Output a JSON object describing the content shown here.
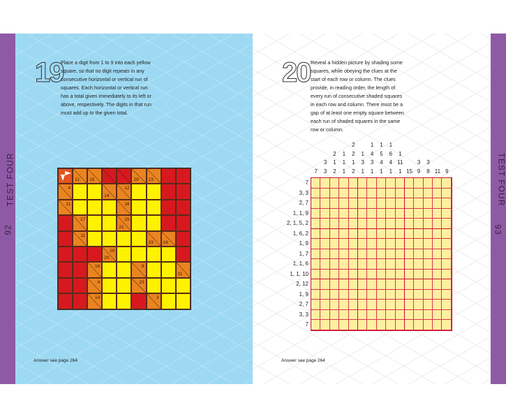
{
  "left_page": {
    "puzzle_number": "19",
    "instructions": "Place a digit from 1 to 9 into each yellow square, so that no digit repeats in any consecutive horizontal or vertical run of squares. Each horizontal or vertical run has a total given immediately to its left or above, respectively. The digits in that run must add up to the given total.",
    "answer_note": "Answer see page 264",
    "side_label": "TEST FOUR",
    "page_number": "92",
    "background_color": "#9dd9f3"
  },
  "right_page": {
    "puzzle_number": "20",
    "instructions": "Reveal a hidden picture by shading some squares, while obeying the clues at the start of each row or column. The clues provide, in reading order, the length of every run of consecutive shaded squares in each row and column. There must be a gap of at least one empty square between each run of shaded squares in the same row or column.",
    "answer_note": "Answer see page 264",
    "side_label": "TEST FOUR",
    "page_number": "93"
  },
  "colors": {
    "side_strip": "#8f5aa5",
    "block": "#d7191f",
    "clue": "#ea8420",
    "entry": "#fff200",
    "nonogram_cell": "#fdf0a0",
    "nonogram_line": "#c8102e"
  },
  "kakuro": {
    "legend": "R=block, Y=entry, C=clue cell, D=block with diagonal, S=start cell with arrows",
    "rows": [
      [
        {
          "t": "S"
        },
        {
          "t": "C",
          "d": "11"
        },
        {
          "t": "C",
          "d": "15"
        },
        {
          "t": "D"
        },
        {
          "t": "D"
        },
        {
          "t": "C",
          "d": "29"
        },
        {
          "t": "C",
          "d": "23"
        },
        {
          "t": "R"
        },
        {
          "t": "R"
        }
      ],
      [
        {
          "t": "C",
          "r": "4"
        },
        {
          "t": "Y"
        },
        {
          "t": "Y"
        },
        {
          "t": "C",
          "d": "14"
        },
        {
          "t": "C",
          "r": "12"
        },
        {
          "t": "Y"
        },
        {
          "t": "Y"
        },
        {
          "t": "R"
        },
        {
          "t": "R"
        }
      ],
      [
        {
          "t": "C",
          "r": "11"
        },
        {
          "t": "Y"
        },
        {
          "t": "Y"
        },
        {
          "t": "Y"
        },
        {
          "t": "C",
          "r": "16"
        },
        {
          "t": "Y"
        },
        {
          "t": "Y"
        },
        {
          "t": "R"
        },
        {
          "t": "R"
        }
      ],
      [
        {
          "t": "R"
        },
        {
          "t": "C",
          "r": "17"
        },
        {
          "t": "Y"
        },
        {
          "t": "Y"
        },
        {
          "t": "C",
          "r": "15",
          "d": "21"
        },
        {
          "t": "Y"
        },
        {
          "t": "Y"
        },
        {
          "t": "R"
        },
        {
          "t": "R"
        }
      ],
      [
        {
          "t": "R"
        },
        {
          "t": "C",
          "r": "11"
        },
        {
          "t": "Y"
        },
        {
          "t": "Y"
        },
        {
          "t": "Y"
        },
        {
          "t": "Y"
        },
        {
          "t": "C",
          "d": "23"
        },
        {
          "t": "C",
          "d": "16"
        },
        {
          "t": "R"
        }
      ],
      [
        {
          "t": "R"
        },
        {
          "t": "R"
        },
        {
          "t": "R"
        },
        {
          "t": "C",
          "r": "29",
          "d": "20"
        },
        {
          "t": "Y"
        },
        {
          "t": "Y"
        },
        {
          "t": "Y"
        },
        {
          "t": "Y"
        },
        {
          "t": "R"
        }
      ],
      [
        {
          "t": "R"
        },
        {
          "t": "R"
        },
        {
          "t": "C",
          "r": "16"
        },
        {
          "t": "Y"
        },
        {
          "t": "Y"
        },
        {
          "t": "C",
          "r": "8"
        },
        {
          "t": "Y"
        },
        {
          "t": "Y"
        },
        {
          "t": "C",
          "d": "11"
        }
      ],
      [
        {
          "t": "R"
        },
        {
          "t": "R"
        },
        {
          "t": "C",
          "r": "4"
        },
        {
          "t": "Y"
        },
        {
          "t": "Y"
        },
        {
          "t": "C",
          "r": "23"
        },
        {
          "t": "Y"
        },
        {
          "t": "Y"
        },
        {
          "t": "Y"
        }
      ],
      [
        {
          "t": "R"
        },
        {
          "t": "R"
        },
        {
          "t": "C",
          "r": "14"
        },
        {
          "t": "Y"
        },
        {
          "t": "Y"
        },
        {
          "t": "R"
        },
        {
          "t": "C",
          "r": "3"
        },
        {
          "t": "Y"
        },
        {
          "t": "Y"
        }
      ]
    ]
  },
  "nonogram": {
    "column_clues": [
      [
        "7"
      ],
      [
        "3",
        "3"
      ],
      [
        "2",
        "1",
        "2"
      ],
      [
        "1",
        "1",
        "1"
      ],
      [
        "2",
        "2",
        "1",
        "2"
      ],
      [
        "1",
        "3",
        "1"
      ],
      [
        "1",
        "4",
        "3",
        "1"
      ],
      [
        "1",
        "5",
        "4",
        "1"
      ],
      [
        "1",
        "6",
        "4",
        "1"
      ],
      [
        "1",
        "11",
        "1"
      ],
      [
        "15"
      ],
      [
        "3",
        "9"
      ],
      [
        "3",
        "8"
      ],
      [
        "11"
      ],
      [
        "9"
      ]
    ],
    "row_clues": [
      "7",
      "3, 3",
      "2, 7",
      "1, 1, 9",
      "2, 1, 5, 2",
      "1, 6, 2",
      "1, 9",
      "1, 7",
      "1, 1, 6",
      "1, 1, 10",
      "2, 12",
      "1, 9",
      "2, 7",
      "3, 3",
      "7"
    ]
  }
}
